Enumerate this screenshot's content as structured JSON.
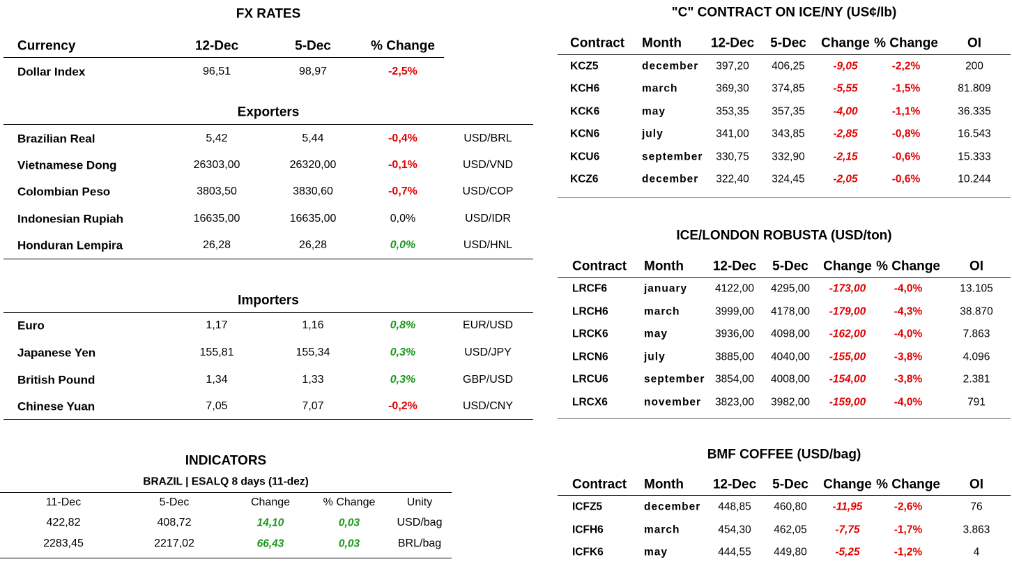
{
  "fx": {
    "title": "FX RATES",
    "headers": [
      "Currency",
      "12-Dec",
      "5-Dec",
      "% Change"
    ],
    "rows": [
      [
        "Dollar Index",
        "96,51",
        "98,97",
        "-2,5%"
      ]
    ]
  },
  "exporters": {
    "title": "Exporters",
    "rows": [
      [
        "Brazilian Real",
        "5,42",
        "5,44",
        "-0,4%",
        "USD/BRL"
      ],
      [
        "Vietnamese Dong",
        "26303,00",
        "26320,00",
        "-0,1%",
        "USD/VND"
      ],
      [
        "Colombian Peso",
        "3803,50",
        "3830,60",
        "-0,7%",
        "USD/COP"
      ],
      [
        "Indonesian Rupiah",
        "16635,00",
        "16635,00",
        "0,0%",
        "USD/IDR"
      ],
      [
        "Honduran Lempira",
        "26,28",
        "26,28",
        "0,0%",
        "USD/HNL"
      ]
    ]
  },
  "importers": {
    "title": "Importers",
    "rows": [
      [
        "Euro",
        "1,17",
        "1,16",
        "0,8%",
        "EUR/USD"
      ],
      [
        "Japanese Yen",
        "155,81",
        "155,34",
        "0,3%",
        "USD/JPY"
      ],
      [
        "British Pound",
        "1,34",
        "1,33",
        "0,3%",
        "GBP/USD"
      ],
      [
        "Chinese Yuan",
        "7,05",
        "7,07",
        "-0,2%",
        "USD/CNY"
      ]
    ]
  },
  "indicators": {
    "title": "INDICATORS",
    "subtitle": "BRAZIL | ESALQ 8 days (11-dez)",
    "headers": [
      "11-Dec",
      "5-Dec",
      "Change",
      "% Change",
      "Unity"
    ],
    "rows": [
      [
        "422,82",
        "408,72",
        "14,10",
        "0,03",
        "USD/bag"
      ],
      [
        "2283,45",
        "2217,02",
        "66,43",
        "0,03",
        "BRL/bag"
      ]
    ]
  },
  "ice_ny": {
    "title": "\"C\" CONTRACT ON ICE/NY (US¢/lb)",
    "headers": [
      "Contract",
      "Month",
      "12-Dec",
      "5-Dec",
      "Change",
      "% Change",
      "OI"
    ],
    "rows": [
      [
        "KCZ5",
        "december",
        "397,20",
        "406,25",
        "-9,05",
        "-2,2%",
        "200"
      ],
      [
        "KCH6",
        "march",
        "369,30",
        "374,85",
        "-5,55",
        "-1,5%",
        "81.809"
      ],
      [
        "KCK6",
        "may",
        "353,35",
        "357,35",
        "-4,00",
        "-1,1%",
        "36.335"
      ],
      [
        "KCN6",
        "july",
        "341,00",
        "343,85",
        "-2,85",
        "-0,8%",
        "16.543"
      ],
      [
        "KCU6",
        "september",
        "330,75",
        "332,90",
        "-2,15",
        "-0,6%",
        "15.333"
      ],
      [
        "KCZ6",
        "december",
        "322,40",
        "324,45",
        "-2,05",
        "-0,6%",
        "10.244"
      ]
    ]
  },
  "robusta": {
    "title": "ICE/LONDON ROBUSTA (USD/ton)",
    "headers": [
      "Contract",
      "Month",
      "12-Dec",
      "5-Dec",
      "Change",
      "% Change",
      "OI"
    ],
    "rows": [
      [
        "LRCF6",
        "january",
        "4122,00",
        "4295,00",
        "-173,00",
        "-4,0%",
        "13.105"
      ],
      [
        "LRCH6",
        "march",
        "3999,00",
        "4178,00",
        "-179,00",
        "-4,3%",
        "38.870"
      ],
      [
        "LRCK6",
        "may",
        "3936,00",
        "4098,00",
        "-162,00",
        "-4,0%",
        "7.863"
      ],
      [
        "LRCN6",
        "july",
        "3885,00",
        "4040,00",
        "-155,00",
        "-3,8%",
        "4.096"
      ],
      [
        "LRCU6",
        "september",
        "3854,00",
        "4008,00",
        "-154,00",
        "-3,8%",
        "2.381"
      ],
      [
        "LRCX6",
        "november",
        "3823,00",
        "3982,00",
        "-159,00",
        "-4,0%",
        "791"
      ]
    ]
  },
  "bmf": {
    "title": "BMF COFFEE (USD/bag)",
    "headers": [
      "Contract",
      "Month",
      "12-Dec",
      "5-Dec",
      "Change",
      "% Change",
      "OI"
    ],
    "rows": [
      [
        "ICFZ5",
        "december",
        "448,85",
        "460,80",
        "-11,95",
        "-2,6%",
        "76"
      ],
      [
        "ICFH6",
        "march",
        "454,30",
        "462,05",
        "-7,75",
        "-1,7%",
        "3.863"
      ],
      [
        "ICFK6",
        "may",
        "444,55",
        "449,80",
        "-5,25",
        "-1,2%",
        "4"
      ]
    ]
  }
}
